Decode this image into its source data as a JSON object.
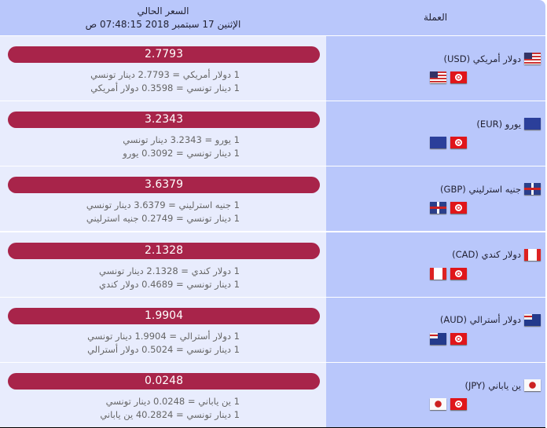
{
  "header": {
    "currency_col": "العملة",
    "current_price": "السعر الحالي",
    "datetime": "الإثنين 17 سبتمبر 2018 07:48:15 ص"
  },
  "rows": [
    {
      "name": "دولار أمريكي (USD)",
      "flag": "usd",
      "rate": "2.7793",
      "line1": "1 دولار أمريكي = 2.7793 دينار تونسي",
      "line2": "1 دينار تونسي = 0.3598 دولار أمريكي"
    },
    {
      "name": "يورو (EUR)",
      "flag": "eur",
      "rate": "3.2343",
      "line1": "1 يورو = 3.2343 دينار تونسي",
      "line2": "1 دينار تونسي = 0.3092 يورو"
    },
    {
      "name": "جنيه استرليني (GBP)",
      "flag": "gbp",
      "rate": "3.6379",
      "line1": "1 جنيه استرليني = 3.6379 دينار تونسي",
      "line2": "1 دينار تونسي = 0.2749 جنيه استرليني"
    },
    {
      "name": "دولار كندي (CAD)",
      "flag": "cad",
      "rate": "2.1328",
      "line1": "1 دولار كندي = 2.1328 دينار تونسي",
      "line2": "1 دينار تونسي = 0.4689 دولار كندي"
    },
    {
      "name": "دولار أسترالي (AUD)",
      "flag": "aud",
      "rate": "1.9904",
      "line1": "1 دولار أسترالي = 1.9904 دينار تونسي",
      "line2": "1 دينار تونسي = 0.5024 دولار أسترالي"
    },
    {
      "name": "ين ياباني (JPY)",
      "flag": "jpy",
      "rate": "0.0248",
      "line1": "1 ين ياباني = 0.0248 دينار تونسي",
      "line2": "1 دينار تونسي = 40.2824 ين ياباني"
    }
  ],
  "colors": {
    "rate_bar": "#a8244a",
    "header_bg": "#b9c7fb",
    "cell_bg": "#e8ecfd"
  }
}
